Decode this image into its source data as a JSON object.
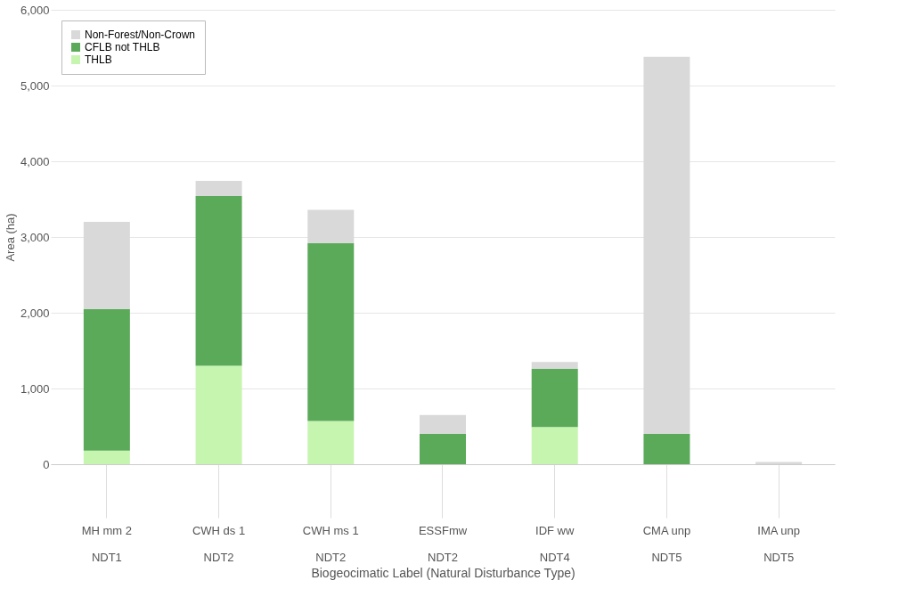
{
  "chart_data": {
    "type": "bar",
    "stacked": true,
    "xlabel": "Biogeocimatic Label (Natural Disturbance Type)",
    "ylabel": "Area (ha)",
    "categories": [
      "MH  mm 2\nNDT1",
      "CWH ds 1\nNDT2",
      "CWH ms 1\nNDT2",
      "ESSFmw\nNDT2",
      "IDF ww\nNDT4",
      "CMA unp\nNDT5",
      "IMA unp\nNDT5"
    ],
    "series": [
      {
        "name": "THLB",
        "color": "#c6f5b0",
        "values": [
          180,
          1300,
          570,
          0,
          490,
          0,
          0
        ]
      },
      {
        "name": "CFLB not THLB",
        "color": "#5aaa5a",
        "values": [
          1870,
          2240,
          2350,
          400,
          770,
          400,
          0
        ]
      },
      {
        "name": "Non-Forest/Non-Crown",
        "color": "#d9d9d9",
        "values": [
          1150,
          200,
          440,
          250,
          90,
          4980,
          30
        ]
      }
    ],
    "ylim": [
      0,
      6000
    ],
    "yticks": [
      {
        "value": 0,
        "label": "0"
      },
      {
        "value": 1000,
        "label": "1,000"
      },
      {
        "value": 2000,
        "label": "2,000"
      },
      {
        "value": 3000,
        "label": "3,000"
      },
      {
        "value": 4000,
        "label": "4,000"
      },
      {
        "value": 5000,
        "label": "5,000"
      },
      {
        "value": 6000,
        "label": "6,000"
      }
    ],
    "grid": "y",
    "legend": "top left"
  }
}
